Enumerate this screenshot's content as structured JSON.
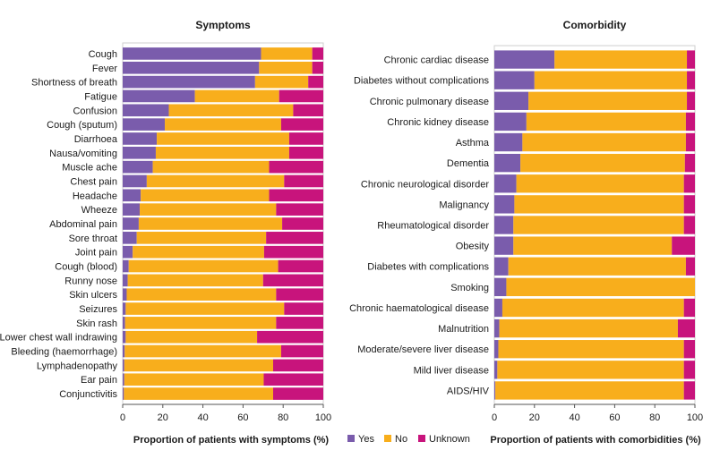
{
  "colors": {
    "yes": "#7a5cac",
    "no": "#f8ae1c",
    "unknown": "#c8147c"
  },
  "legend": {
    "yes": "Yes",
    "no": "No",
    "unknown": "Unknown"
  },
  "chart_data": [
    {
      "type": "bar",
      "orientation": "horizontal",
      "stacked": true,
      "title": "Symptoms",
      "xlabel": "Proportion of patients with symptoms (%)",
      "xlim": [
        0,
        100
      ],
      "xticks": [
        "0",
        "20",
        "40",
        "60",
        "80",
        "100"
      ],
      "categories": [
        "Cough",
        "Fever",
        "Shortness of breath",
        "Fatigue",
        "Confusion",
        "Cough (sputum)",
        "Diarrhoea",
        "Nausa/vomiting",
        "Muscle ache",
        "Chest pain",
        "Headache",
        "Wheeze",
        "Abdominal pain",
        "Sore throat",
        "Joint pain",
        "Cough (blood)",
        "Runny nose",
        "Skin ulcers",
        "Seizures",
        "Skin rash",
        "Lower chest wall indrawing",
        "Bleeding (haemorrhage)",
        "Lymphadenopathy",
        "Ear pain",
        "Conjunctivitis"
      ],
      "series": [
        {
          "name": "Yes",
          "values": [
            69,
            68,
            66,
            36,
            23,
            21,
            17,
            16.5,
            15,
            12,
            9,
            8.5,
            8,
            7,
            5,
            3,
            2.5,
            2,
            1.5,
            1.2,
            1.5,
            1,
            0.8,
            0.8,
            0.6
          ]
        },
        {
          "name": "No",
          "values": [
            25.5,
            26.5,
            26.5,
            42,
            62,
            58,
            66,
            66.5,
            58,
            68.5,
            64,
            68,
            71.5,
            64.5,
            65.5,
            74.5,
            67.5,
            74.5,
            79,
            75.3,
            65.5,
            78,
            74.2,
            69.5,
            74.4
          ]
        },
        {
          "name": "Unknown",
          "values": [
            5.5,
            5.5,
            7.5,
            22,
            15,
            21,
            17,
            17,
            27,
            19.5,
            27,
            23.5,
            20.5,
            28.5,
            29.5,
            22.5,
            30,
            23.5,
            19.5,
            23.5,
            33,
            21,
            25,
            29.7,
            25
          ]
        }
      ]
    },
    {
      "type": "bar",
      "orientation": "horizontal",
      "stacked": true,
      "title": "Comorbidity",
      "xlabel": "Proportion of patients with comorbidities (%)",
      "xlim": [
        0,
        100
      ],
      "xticks": [
        "0",
        "20",
        "40",
        "60",
        "80",
        "100"
      ],
      "categories": [
        "Chronic cardiac disease",
        "Diabetes without complications",
        "Chronic pulmonary disease",
        "Chronic kidney disease",
        "Asthma",
        "Dementia",
        "Chronic neurological disorder",
        "Malignancy",
        "Rheumatological disorder",
        "Obesity",
        "Diabetes with complications",
        "Smoking",
        "Chronic haematological disease",
        "Malnutrition",
        "Moderate/severe liver disease",
        "Mild liver disease",
        "AIDS/HIV"
      ],
      "series": [
        {
          "name": "Yes",
          "values": [
            30,
            20,
            17,
            16,
            14,
            13,
            11,
            10,
            9.5,
            9.5,
            7,
            6,
            4,
            2.5,
            2,
            1.5,
            0.5
          ]
        },
        {
          "name": "No",
          "values": [
            66,
            76,
            79,
            79.5,
            81.5,
            82,
            83.5,
            84.5,
            85,
            79,
            88.5,
            94,
            90.5,
            89,
            92.5,
            93,
            94
          ]
        },
        {
          "name": "Unknown",
          "values": [
            4,
            4,
            4,
            4.5,
            4.5,
            5,
            5.5,
            5.5,
            5.5,
            11.5,
            4.5,
            0,
            5.5,
            8.5,
            5.5,
            5.5,
            5.5
          ]
        }
      ]
    }
  ]
}
